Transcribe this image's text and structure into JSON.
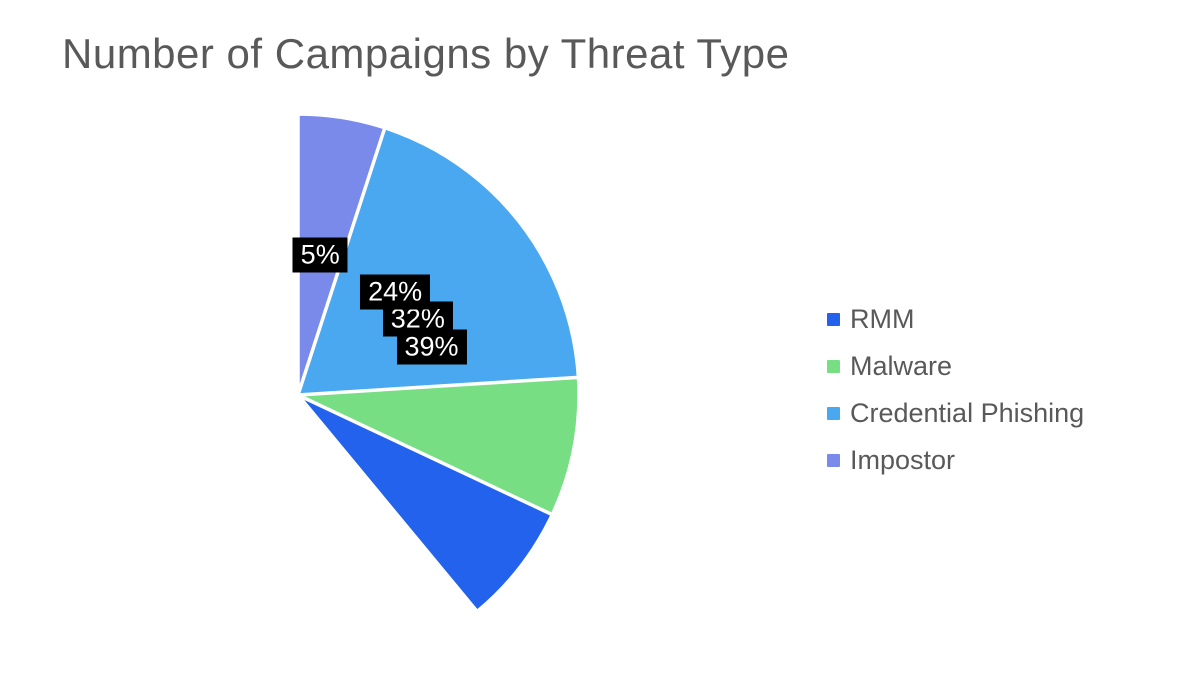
{
  "page": {
    "background_color": "#FFFFFF"
  },
  "chart_data": {
    "type": "pie",
    "title": "Number of Campaigns by Threat Type",
    "title_color": "#595959",
    "slices": [
      {
        "label": "RMM",
        "value": 39,
        "percent_label": "39%",
        "color": "#2262EC"
      },
      {
        "label": "Malware",
        "value": 32,
        "percent_label": "32%",
        "color": "#77DE83"
      },
      {
        "label": "Credential Phishing",
        "value": 24,
        "percent_label": "24%",
        "color": "#4AA8F1"
      },
      {
        "label": "Impostor",
        "value": 5,
        "percent_label": "5%",
        "color": "#7A8AEB"
      }
    ],
    "start_angle_deg": 0,
    "direction": "clockwise",
    "slice_border_color": "#FFFFFF",
    "data_label_style": {
      "background": "#000000",
      "text_color": "#FFFFFF"
    },
    "label_radius_fraction": 0.505,
    "legend_position": "right",
    "legend_text_color": "#595959",
    "grid": false
  }
}
